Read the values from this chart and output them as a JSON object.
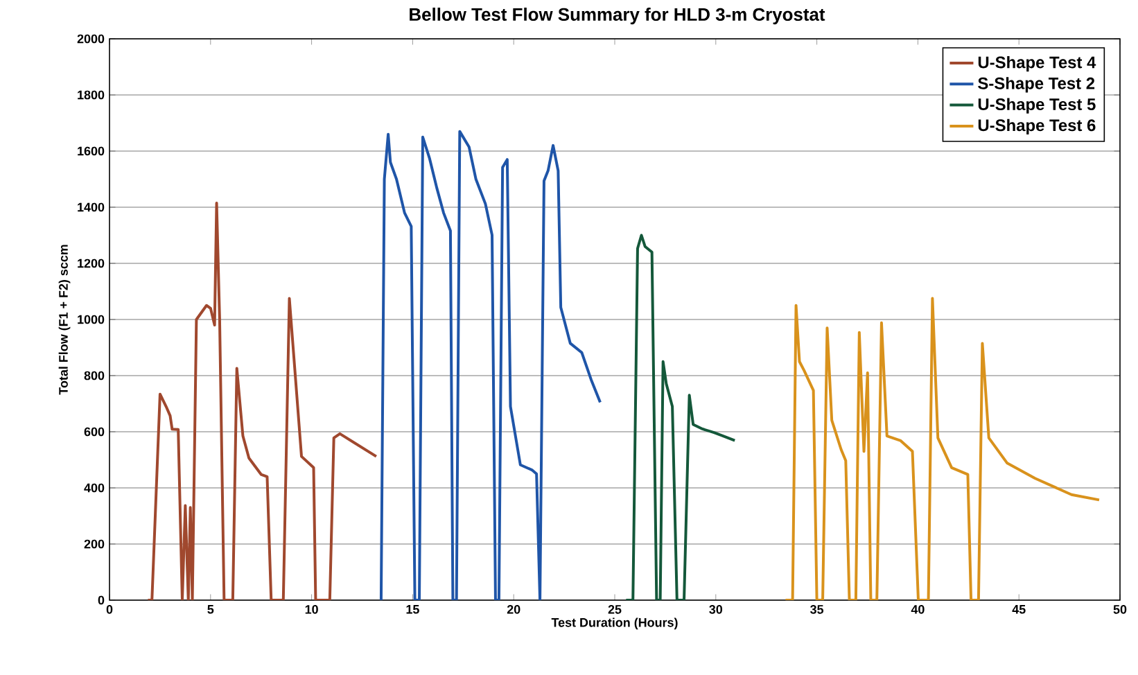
{
  "chart_data": {
    "type": "line",
    "title": "Bellow Test Flow Summary for HLD 3-m Cryostat",
    "xlabel": "Test Duration (Hours)",
    "ylabel": "Total Flow (F1 + F2) sccm",
    "xlim": [
      0,
      50
    ],
    "ylim": [
      0,
      2000
    ],
    "xticks": [
      0,
      5,
      10,
      15,
      20,
      25,
      30,
      35,
      40,
      45,
      50
    ],
    "yticks": [
      0,
      200,
      400,
      600,
      800,
      1000,
      1200,
      1400,
      1600,
      1800,
      2000
    ],
    "grid": "y",
    "legend": "top right",
    "marker": "none",
    "line_style": "solid",
    "series": [
      {
        "name": "U-Shape Test 4",
        "color": "#a0482e",
        "x": [
          1.9,
          2.1,
          2.5,
          2.8,
          3.0,
          3.1,
          3.4,
          3.6,
          3.75,
          3.9,
          4.0,
          4.1,
          4.3,
          4.8,
          5.0,
          5.2,
          5.3,
          5.45,
          5.67,
          5.75,
          6.0,
          6.1,
          6.3,
          6.6,
          6.9,
          7.5,
          7.8,
          8.0,
          8.4,
          8.6,
          8.9,
          9.5,
          10.1,
          10.2,
          10.9,
          11.1,
          11.4,
          13.2
        ],
        "values": [
          0,
          0,
          734,
          690,
          657,
          609,
          608,
          0,
          337,
          0,
          330,
          0,
          1000,
          1050,
          1040,
          980,
          1415,
          1000,
          0,
          0,
          0,
          0,
          826,
          585,
          506,
          448,
          440,
          0,
          0,
          0,
          1075,
          512,
          472,
          0,
          0,
          578,
          593,
          512
        ]
      },
      {
        "name": "S-Shape Test 2",
        "color": "#1f55a8",
        "x": [
          13.44,
          13.6,
          13.79,
          13.9,
          14.0,
          14.2,
          14.4,
          14.6,
          14.93,
          15.11,
          15.33,
          15.5,
          15.84,
          16.19,
          16.53,
          16.87,
          16.99,
          17.17,
          17.33,
          17.79,
          18.13,
          18.6,
          18.93,
          19.1,
          19.27,
          19.45,
          19.68,
          19.84,
          20.33,
          20.9,
          21.13,
          21.3,
          21.5,
          21.7,
          21.95,
          22.2,
          22.33,
          22.8,
          23.37,
          23.83,
          24.28
        ],
        "values": [
          0,
          1500,
          1660,
          1560,
          1540,
          1500,
          1440,
          1380,
          1332,
          0,
          0,
          1650,
          1573,
          1470,
          1380,
          1316,
          0,
          0,
          1670,
          1615,
          1500,
          1412,
          1301,
          0,
          0,
          1542,
          1570,
          690,
          482,
          464,
          450,
          0,
          1494,
          1530,
          1620,
          1530,
          1043,
          915,
          882,
          786,
          705
        ]
      },
      {
        "name": "U-Shape Test 5",
        "color": "#14583a",
        "x": [
          25.56,
          25.9,
          26.13,
          26.32,
          26.5,
          26.84,
          27.07,
          27.25,
          27.39,
          27.55,
          27.85,
          28.08,
          28.43,
          28.69,
          28.88,
          29.34,
          29.91,
          30.25,
          30.94
        ],
        "values": [
          0,
          0,
          1253,
          1300,
          1260,
          1240,
          0,
          0,
          850,
          771,
          690,
          0,
          0,
          730,
          626,
          610,
          597,
          588,
          569
        ]
      },
      {
        "name": "U-Shape Test 6",
        "color": "#d9921c",
        "x": [
          33.45,
          33.8,
          33.97,
          34.14,
          34.37,
          34.83,
          35.0,
          35.29,
          35.51,
          35.74,
          36.2,
          36.43,
          36.61,
          36.93,
          37.1,
          37.33,
          37.51,
          37.67,
          37.97,
          38.2,
          38.47,
          39.15,
          39.73,
          40.02,
          40.52,
          40.72,
          40.99,
          41.67,
          42.47,
          42.63,
          43.0,
          43.19,
          43.51,
          44.42,
          45.8,
          47.6,
          48.97
        ],
        "values": [
          0,
          0,
          1050,
          850,
          818,
          747,
          0,
          0,
          970,
          641,
          537,
          497,
          0,
          0,
          954,
          530,
          810,
          0,
          0,
          988,
          585,
          568,
          530,
          0,
          0,
          1075,
          578,
          472,
          448,
          0,
          0,
          915,
          578,
          488,
          434,
          376,
          357
        ]
      }
    ]
  }
}
